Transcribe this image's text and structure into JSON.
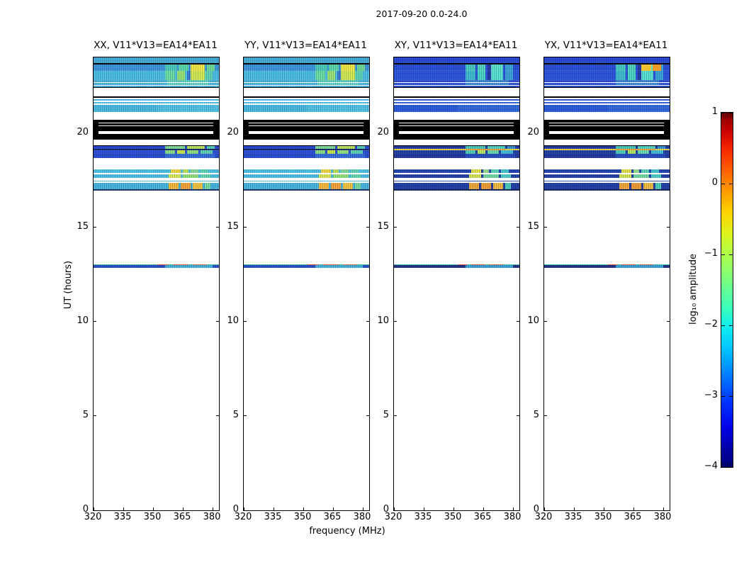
{
  "chart_data": {
    "type": "heatmap",
    "title": "2017-09-20 0.0-24.0",
    "xlabel": "frequency (MHz)",
    "ylabel": "UT (hours)",
    "xlim": [
      320,
      383.2
    ],
    "ylim": [
      0,
      24
    ],
    "xticks": [
      320,
      335,
      350,
      365,
      380
    ],
    "xtick_labels": [
      "320",
      "335",
      "350",
      "365",
      "380"
    ],
    "yticks": [
      0,
      5,
      10,
      15,
      20
    ],
    "ytick_labels": [
      "0",
      "5",
      "10",
      "15",
      "20"
    ],
    "grid": false,
    "panels": [
      {
        "id": "xx",
        "title": "XX, V11*V13=EA14*EA11",
        "bands": "parallel"
      },
      {
        "id": "yy",
        "title": "YY, V11*V13=EA14*EA11",
        "bands": "parallel"
      },
      {
        "id": "xy",
        "title": "XY, V11*V13=EA14*EA11",
        "bands": "cross"
      },
      {
        "id": "yx",
        "title": "YX, V11*V13=EA14*EA11",
        "bands": "cross",
        "extra_bands": [
          {
            "u0": 23.27,
            "u1": 23.64,
            "c": "",
            "b": [
              [
                369,
                374,
                "#f0c232"
              ],
              [
                374.5,
                379,
                "#f09a28"
              ]
            ]
          }
        ]
      }
    ],
    "colorbar": {
      "label": "log₁₀ amplitude",
      "vmin": -4,
      "vmax": 1,
      "ticks": [
        1,
        0,
        -1,
        -2,
        -3,
        -4
      ],
      "tick_labels": [
        "1",
        "0",
        "−1",
        "−2",
        "−3",
        "−4"
      ],
      "cmap": "jet",
      "stops": [
        [
          0,
          "#00007f"
        ],
        [
          5,
          "#0000a4"
        ],
        [
          11,
          "#0000e8"
        ],
        [
          18,
          "#0030ff"
        ],
        [
          25,
          "#0074ff"
        ],
        [
          32,
          "#00b8ff"
        ],
        [
          39,
          "#0cecf4"
        ],
        [
          45,
          "#3cffba"
        ],
        [
          50,
          "#62ff94"
        ],
        [
          55,
          "#8aff6c"
        ],
        [
          61,
          "#b4ff42"
        ],
        [
          66,
          "#def21c"
        ],
        [
          72,
          "#ffd200"
        ],
        [
          78,
          "#ff9800"
        ],
        [
          84,
          "#ff5e00"
        ],
        [
          90,
          "#f42400"
        ],
        [
          95,
          "#c80000"
        ],
        [
          100,
          "#7f0000"
        ]
      ]
    },
    "bands": {
      "parallel": [
        {
          "u0": 23.7,
          "u1": 24.0,
          "c": "#38a8d4"
        },
        {
          "u0": 23.64,
          "u1": 23.7,
          "c": "#000000"
        },
        {
          "u0": 23.27,
          "u1": 23.64,
          "c": "#2f92d8",
          "b": [
            [
              356,
              362,
              "#41c8b4"
            ],
            [
              363,
              368,
              "#52d8a6"
            ],
            [
              369,
              376,
              "#efe838"
            ],
            [
              377,
              381,
              "#67d98e"
            ]
          ]
        },
        {
          "u0": 22.8,
          "u1": 23.27,
          "c": "#41bce2",
          "b": [
            [
              356,
              361,
              "#63dc9c"
            ],
            [
              362,
              366,
              "#93e36b"
            ],
            [
              367,
              369,
              "#2f77cc"
            ],
            [
              369,
              376,
              "#d2ea48"
            ],
            [
              376,
              380,
              "#55d2b2"
            ]
          ]
        },
        {
          "u0": 22.69,
          "u1": 22.8,
          "c": "#3db2dc",
          "b": [
            [
              357,
              378,
              "#55cdbb"
            ]
          ]
        },
        {
          "u0": 22.63,
          "u1": 22.69,
          "c": "#ffffff"
        },
        {
          "u0": 22.54,
          "u1": 22.63,
          "c": "#3fb4de",
          "b": [
            [
              357,
              378,
              "#58cfc0"
            ]
          ]
        },
        {
          "u0": 22.48,
          "u1": 22.54,
          "c": "#ffffff"
        },
        {
          "u0": 22.42,
          "u1": 22.48,
          "c": "#39acd8"
        },
        {
          "u0": 22.37,
          "u1": 22.42,
          "c": "#000000"
        },
        {
          "u0": 21.92,
          "u1": 22.37,
          "c": "#ffffff"
        },
        {
          "u0": 21.86,
          "u1": 21.92,
          "c": "#000000"
        },
        {
          "u0": 21.79,
          "u1": 21.86,
          "c": "#ffffff"
        },
        {
          "u0": 21.71,
          "u1": 21.79,
          "c": "#44bbe0"
        },
        {
          "u0": 21.64,
          "u1": 21.71,
          "c": "#ffffff"
        },
        {
          "u0": 21.56,
          "u1": 21.64,
          "c": "#4cc2e4"
        },
        {
          "u0": 21.47,
          "u1": 21.56,
          "c": "#ffffff"
        },
        {
          "u0": 21.09,
          "u1": 21.47,
          "c": "#3fb8e0",
          "b": [
            [
              352,
              383,
              "#47c2e2"
            ]
          ]
        },
        {
          "u0": 20.68,
          "u1": 21.09,
          "c": "#ffffff"
        },
        {
          "u0": 20.56,
          "u1": 20.68,
          "c": "#000000"
        },
        {
          "u0": 20.51,
          "u1": 20.56,
          "c": "#ffffff",
          "b": [
            [
              320,
              322.5,
              "#000000"
            ],
            [
              380.5,
              383.2,
              "#000000"
            ]
          ]
        },
        {
          "u0": 20.39,
          "u1": 20.51,
          "c": "#000000"
        },
        {
          "u0": 20.34,
          "u1": 20.39,
          "c": "#ffffff",
          "b": [
            [
              320,
              322.5,
              "#000000"
            ],
            [
              380.5,
              383.2,
              "#000000"
            ]
          ]
        },
        {
          "u0": 20.11,
          "u1": 20.34,
          "c": "#000000"
        },
        {
          "u0": 19.96,
          "u1": 20.11,
          "c": "#ffffff",
          "b": [
            [
              320,
              322.5,
              "#000000"
            ],
            [
              380.5,
              383.2,
              "#000000"
            ]
          ]
        },
        {
          "u0": 19.64,
          "u1": 19.96,
          "c": "#000000"
        },
        {
          "u0": 19.36,
          "u1": 19.64,
          "c": "#ffffff"
        },
        {
          "u0": 19.31,
          "u1": 19.36,
          "c": "#000000"
        },
        {
          "u0": 19.16,
          "u1": 19.31,
          "c": "#1b3fd0",
          "b": [
            [
              356,
              366,
              "#79e08c"
            ],
            [
              367,
              376,
              "#b9e74e"
            ],
            [
              377,
              381,
              "#4ecfb2"
            ]
          ]
        },
        {
          "u0": 19.08,
          "u1": 19.16,
          "c": "#0a1c5e"
        },
        {
          "u0": 18.91,
          "u1": 19.08,
          "c": "#1e48d4",
          "b": [
            [
              356,
              361,
              "#84e17e"
            ],
            [
              362,
              366,
              "#c6ea42"
            ],
            [
              367,
              373,
              "#8ce276"
            ],
            [
              374,
              380,
              "#52d2ae"
            ]
          ]
        },
        {
          "u0": 18.67,
          "u1": 18.91,
          "c": "#1c44cc",
          "b": [
            [
              356,
              381,
              "#2a66d8"
            ]
          ]
        },
        {
          "u0": 18.08,
          "u1": 18.67,
          "c": "#ffffff"
        },
        {
          "u0": 17.86,
          "u1": 18.08,
          "c": "#46c0e2",
          "b": [
            [
              359,
              364,
              "#f0d838"
            ],
            [
              365,
              368,
              "#bae34e"
            ],
            [
              369,
              373,
              "#7edc8c"
            ],
            [
              374,
              378,
              "#5ad4b0"
            ]
          ]
        },
        {
          "u0": 17.8,
          "u1": 17.86,
          "c": "#ffffff"
        },
        {
          "u0": 17.6,
          "u1": 17.8,
          "c": "#43bce0",
          "b": [
            [
              358,
              364,
              "#d8e84a"
            ],
            [
              365,
              373,
              "#8ee070"
            ],
            [
              374,
              379,
              "#60d6a8"
            ]
          ]
        },
        {
          "u0": 17.48,
          "u1": 17.6,
          "c": "#ffffff"
        },
        {
          "u0": 17.41,
          "u1": 17.48,
          "c": "#3fb6de"
        },
        {
          "u0": 17.35,
          "u1": 17.41,
          "c": "#ffffff"
        },
        {
          "u0": 17.0,
          "u1": 17.35,
          "c": "#3cb2dc",
          "b": [
            [
              358,
              363,
              "#f5b62e"
            ],
            [
              364,
              369,
              "#f5a02a"
            ],
            [
              370,
              375,
              "#f4c234"
            ],
            [
              376,
              379,
              "#72da96"
            ]
          ]
        },
        {
          "u0": 16.94,
          "u1": 17.0,
          "c": "#0a2a66"
        },
        {
          "u0": 12.98,
          "u1": 13.03,
          "c": "#35c08a",
          "b": [
            [
              352,
              358,
              "#e84d20"
            ],
            [
              360,
              368,
              "#e8571c"
            ],
            [
              370,
              377,
              "#e2661e"
            ]
          ]
        },
        {
          "u0": 12.86,
          "u1": 12.98,
          "c": "#1e46c8",
          "b": [
            [
              356,
              380,
              "#38b0d8"
            ]
          ]
        }
      ],
      "cross": [
        {
          "u0": 23.7,
          "u1": 24.0,
          "c": "#1a3fd2"
        },
        {
          "u0": 23.64,
          "u1": 23.7,
          "c": "#000000"
        },
        {
          "u0": 23.27,
          "u1": 23.64,
          "c": "#1c42d6",
          "b": [
            [
              356,
              361,
              "#3cc8c0"
            ],
            [
              362,
              366,
              "#46d2b8"
            ],
            [
              367,
              369,
              "#15309c"
            ],
            [
              369,
              375,
              "#52e0c8"
            ],
            [
              376,
              380,
              "#2f9fd8"
            ]
          ]
        },
        {
          "u0": 22.8,
          "u1": 23.27,
          "c": "#1e4ad8",
          "b": [
            [
              356,
              361,
              "#34b8cc"
            ],
            [
              362,
              366,
              "#3fd2c0"
            ],
            [
              367,
              369,
              "#16309e"
            ],
            [
              369,
              375,
              "#4ee0d0"
            ],
            [
              376,
              380,
              "#2e9ed4"
            ]
          ]
        },
        {
          "u0": 22.69,
          "u1": 22.8,
          "c": "#1c44d0",
          "b": [
            [
              356,
              378,
              "#2a80cc"
            ]
          ]
        },
        {
          "u0": 22.63,
          "u1": 22.69,
          "c": "#ffffff"
        },
        {
          "u0": 22.54,
          "u1": 22.63,
          "c": "#1e46d2",
          "b": [
            [
              356,
              378,
              "#2a84ce"
            ]
          ]
        },
        {
          "u0": 22.48,
          "u1": 22.54,
          "c": "#ffffff"
        },
        {
          "u0": 22.42,
          "u1": 22.48,
          "c": "#1a40cc"
        },
        {
          "u0": 22.37,
          "u1": 22.42,
          "c": "#000000"
        },
        {
          "u0": 21.92,
          "u1": 22.37,
          "c": "#ffffff"
        },
        {
          "u0": 21.86,
          "u1": 21.92,
          "c": "#000000"
        },
        {
          "u0": 21.79,
          "u1": 21.86,
          "c": "#ffffff"
        },
        {
          "u0": 21.71,
          "u1": 21.79,
          "c": "#2356d8"
        },
        {
          "u0": 21.64,
          "u1": 21.71,
          "c": "#ffffff"
        },
        {
          "u0": 21.56,
          "u1": 21.64,
          "c": "#2a62da"
        },
        {
          "u0": 21.47,
          "u1": 21.56,
          "c": "#ffffff"
        },
        {
          "u0": 21.09,
          "u1": 21.47,
          "c": "#2052d6",
          "b": [
            [
              352,
              383,
              "#2562d8"
            ]
          ]
        },
        {
          "u0": 20.68,
          "u1": 21.09,
          "c": "#ffffff"
        },
        {
          "u0": 20.56,
          "u1": 20.68,
          "c": "#000000"
        },
        {
          "u0": 20.51,
          "u1": 20.56,
          "c": "#ffffff",
          "b": [
            [
              320,
              322.5,
              "#000000"
            ],
            [
              380.5,
              383.2,
              "#000000"
            ]
          ]
        },
        {
          "u0": 20.39,
          "u1": 20.51,
          "c": "#000000"
        },
        {
          "u0": 20.34,
          "u1": 20.39,
          "c": "#ffffff",
          "b": [
            [
              320,
              322.5,
              "#000000"
            ],
            [
              380.5,
              383.2,
              "#000000"
            ]
          ]
        },
        {
          "u0": 20.11,
          "u1": 20.34,
          "c": "#000000"
        },
        {
          "u0": 19.96,
          "u1": 20.11,
          "c": "#ffffff",
          "b": [
            [
              320,
              322.5,
              "#000000"
            ],
            [
              380.5,
              383.2,
              "#000000"
            ]
          ]
        },
        {
          "u0": 19.64,
          "u1": 19.96,
          "c": "#000000"
        },
        {
          "u0": 19.36,
          "u1": 19.64,
          "c": "#ffffff"
        },
        {
          "u0": 19.31,
          "u1": 19.36,
          "c": "#000000"
        },
        {
          "u0": 19.16,
          "u1": 19.31,
          "c": "#14309e",
          "b": [
            [
              356,
              366,
              "#3ecab6"
            ],
            [
              367,
              376,
              "#47d4c0"
            ],
            [
              377,
              381,
              "#2c8ed0"
            ]
          ]
        },
        {
          "u0": 19.08,
          "u1": 19.16,
          "c": "#e8d83a",
          "b": [
            [
              356,
              376,
              "#f2a028"
            ]
          ]
        },
        {
          "u0": 18.91,
          "u1": 19.08,
          "c": "#16369e",
          "b": [
            [
              356,
              361,
              "#42ccb0"
            ],
            [
              362,
              366,
              "#b2e65a"
            ],
            [
              367,
              373,
              "#60d8a8"
            ],
            [
              374,
              380,
              "#38bcd4"
            ]
          ]
        },
        {
          "u0": 18.67,
          "u1": 18.91,
          "c": "#142e96",
          "b": [
            [
              356,
              381,
              "#1c44bb"
            ]
          ]
        },
        {
          "u0": 18.08,
          "u1": 18.67,
          "c": "#ffffff"
        },
        {
          "u0": 17.86,
          "u1": 18.08,
          "c": "#173cae",
          "b": [
            [
              359,
              364,
              "#e4e040"
            ],
            [
              365,
              368,
              "#8ee082"
            ],
            [
              369,
              373,
              "#52d4b4"
            ],
            [
              374,
              378,
              "#3cc4cc"
            ]
          ]
        },
        {
          "u0": 17.8,
          "u1": 17.86,
          "c": "#ffffff"
        },
        {
          "u0": 17.6,
          "u1": 17.8,
          "c": "#16389f",
          "b": [
            [
              358,
              364,
              "#d0e44a"
            ],
            [
              365,
              373,
              "#6cd89c"
            ],
            [
              374,
              379,
              "#44ccc0"
            ]
          ]
        },
        {
          "u0": 17.48,
          "u1": 17.6,
          "c": "#ffffff"
        },
        {
          "u0": 17.41,
          "u1": 17.48,
          "c": "#1a3cae"
        },
        {
          "u0": 17.35,
          "u1": 17.41,
          "c": "#ffffff"
        },
        {
          "u0": 17.0,
          "u1": 17.35,
          "c": "#14349e",
          "b": [
            [
              358,
              363,
              "#f0a430"
            ],
            [
              364,
              369,
              "#f09a28"
            ],
            [
              370,
              375,
              "#f0b834"
            ],
            [
              376,
              379,
              "#46ccb4"
            ]
          ]
        },
        {
          "u0": 16.94,
          "u1": 17.0,
          "c": "#081c56"
        },
        {
          "u0": 12.98,
          "u1": 13.03,
          "c": "#38c9a0",
          "b": [
            [
              352,
              357,
              "#e0512a"
            ],
            [
              359,
              366,
              "#de4f28"
            ],
            [
              368,
              375,
              "#e0612a"
            ]
          ]
        },
        {
          "u0": 12.86,
          "u1": 12.98,
          "c": "#12287e",
          "b": [
            [
              356,
              380,
              "#2f9ed8"
            ]
          ]
        }
      ]
    }
  }
}
